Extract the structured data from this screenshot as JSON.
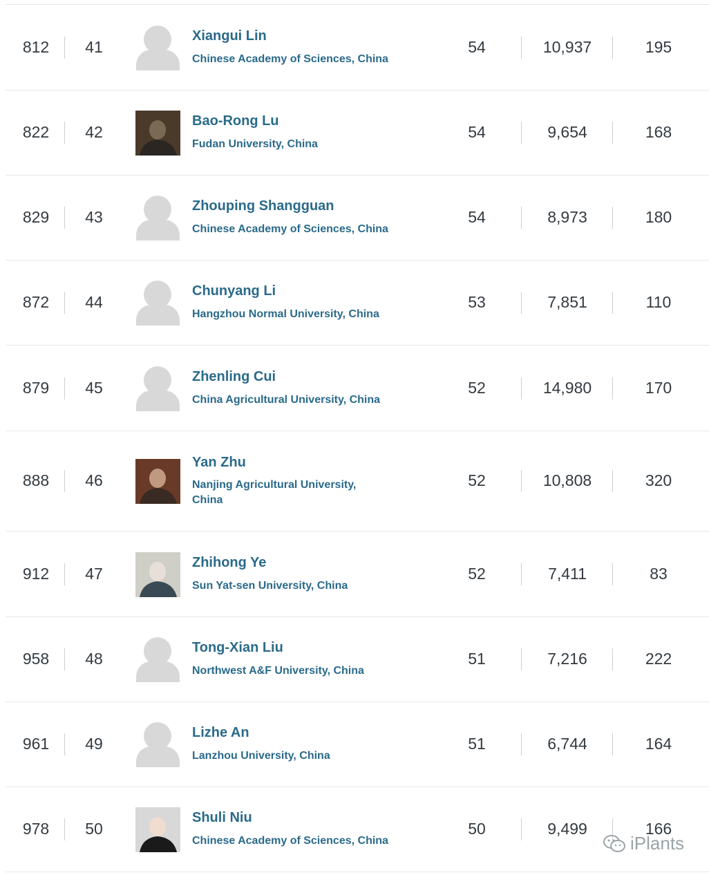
{
  "rows": [
    {
      "world_rank": "812",
      "national_rank": "41",
      "name": "Xiangui Lin",
      "affiliation": "Chinese Academy of Sciences, China",
      "h_index": "54",
      "citations": "10,937",
      "publications": "195",
      "avatar": "placeholder"
    },
    {
      "world_rank": "822",
      "national_rank": "42",
      "name": "Bao-Rong Lu",
      "affiliation": "Fudan University, China",
      "h_index": "54",
      "citations": "9,654",
      "publications": "168",
      "avatar": "photo"
    },
    {
      "world_rank": "829",
      "national_rank": "43",
      "name": "Zhouping Shangguan",
      "affiliation": "Chinese Academy of Sciences, China",
      "h_index": "54",
      "citations": "8,973",
      "publications": "180",
      "avatar": "placeholder"
    },
    {
      "world_rank": "872",
      "national_rank": "44",
      "name": "Chunyang Li",
      "affiliation": "Hangzhou Normal University, China",
      "h_index": "53",
      "citations": "7,851",
      "publications": "110",
      "avatar": "placeholder"
    },
    {
      "world_rank": "879",
      "national_rank": "45",
      "name": "Zhenling Cui",
      "affiliation": "China Agricultural University, China",
      "h_index": "52",
      "citations": "14,980",
      "publications": "170",
      "avatar": "placeholder"
    },
    {
      "world_rank": "888",
      "national_rank": "46",
      "name": "Yan Zhu",
      "affiliation": "Nanjing Agricultural University, China",
      "h_index": "52",
      "citations": "10,808",
      "publications": "320",
      "avatar": "photo"
    },
    {
      "world_rank": "912",
      "national_rank": "47",
      "name": "Zhihong Ye",
      "affiliation": "Sun Yat-sen University, China",
      "h_index": "52",
      "citations": "7,411",
      "publications": "83",
      "avatar": "photo"
    },
    {
      "world_rank": "958",
      "national_rank": "48",
      "name": "Tong-Xian Liu",
      "affiliation": "Northwest A&F University, China",
      "h_index": "51",
      "citations": "7,216",
      "publications": "222",
      "avatar": "placeholder"
    },
    {
      "world_rank": "961",
      "national_rank": "49",
      "name": "Lizhe An",
      "affiliation": "Lanzhou University, China",
      "h_index": "51",
      "citations": "6,744",
      "publications": "164",
      "avatar": "placeholder"
    },
    {
      "world_rank": "978",
      "national_rank": "50",
      "name": "Shuli Niu",
      "affiliation": "Chinese Academy of Sciences, China",
      "h_index": "50",
      "citations": "9,499",
      "publications": "166",
      "avatar": "photo"
    }
  ],
  "watermark": {
    "text": "iPlants",
    "icon": "wechat-icon"
  }
}
